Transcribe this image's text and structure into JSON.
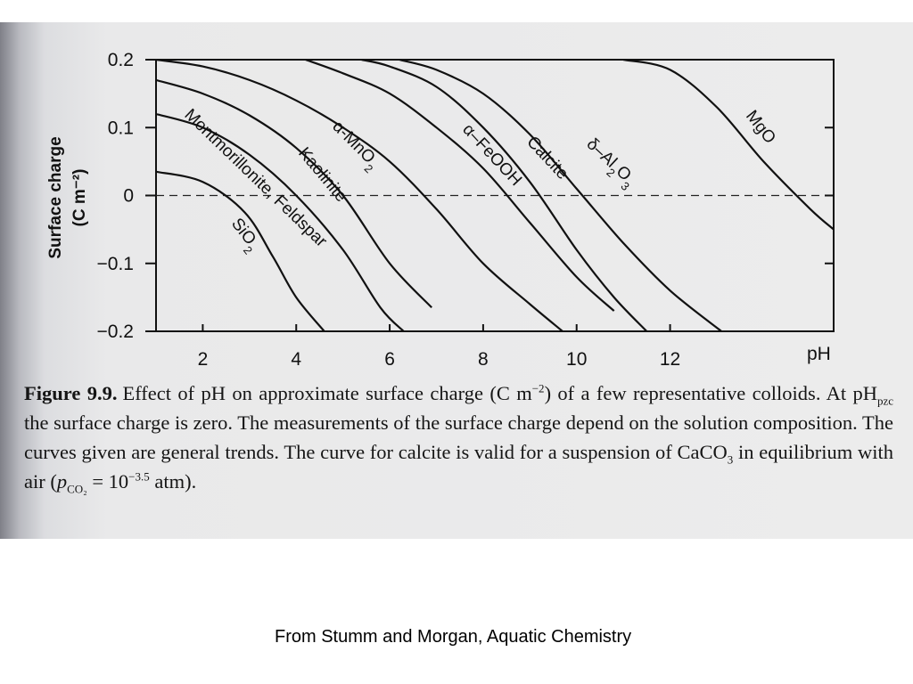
{
  "chart_data": {
    "type": "line",
    "title": "",
    "xlabel": "pH",
    "ylabel_line1": "Surface charge",
    "ylabel_line2": "(C m⁻²)",
    "xlim": [
      1,
      15.5
    ],
    "ylim": [
      -0.2,
      0.2
    ],
    "x_ticks": [
      2,
      4,
      6,
      8,
      10,
      12
    ],
    "x_tick_labels": [
      "2",
      "4",
      "6",
      "8",
      "10",
      "12"
    ],
    "y_ticks": [
      0.2,
      0.1,
      0,
      -0.1,
      -0.2
    ],
    "y_tick_labels": [
      "0.2",
      "0.1",
      "0",
      "−0.1",
      "−0.2"
    ],
    "zero_line": "dashed",
    "series": [
      {
        "name": "SiO2",
        "label": "SiO",
        "sub": "2",
        "x": [
          1.0,
          2.0,
          2.9,
          3.5,
          4.0,
          4.6
        ],
        "y": [
          0.035,
          0.02,
          -0.025,
          -0.09,
          -0.15,
          -0.2
        ]
      },
      {
        "name": "Montmorillonite, Feldspar",
        "label": "Montmorillonite, Feldspar",
        "x": [
          1.0,
          2.0,
          3.0,
          4.0,
          5.0,
          5.8,
          6.3
        ],
        "y": [
          0.12,
          0.1,
          0.06,
          0.0,
          -0.08,
          -0.165,
          -0.2
        ]
      },
      {
        "name": "Kaolinite",
        "label": "Kaolinite",
        "x": [
          1.0,
          2.0,
          3.0,
          4.0,
          5.0,
          6.0,
          6.9
        ],
        "y": [
          0.17,
          0.15,
          0.118,
          0.07,
          0.0,
          -0.1,
          -0.165
        ]
      },
      {
        "name": "α-MnO2",
        "label": "α-MnO",
        "sub": "2",
        "x": [
          1.0,
          2.0,
          3.0,
          4.0,
          5.0,
          6.0,
          7.0,
          8.0,
          9.0,
          9.7
        ],
        "y": [
          0.2,
          0.19,
          0.17,
          0.14,
          0.1,
          0.05,
          -0.02,
          -0.1,
          -0.16,
          -0.2
        ]
      },
      {
        "name": "α–FeOOH",
        "label": "α–FeOOH",
        "x": [
          4.2,
          5.0,
          6.0,
          7.0,
          8.0,
          9.0,
          10.0,
          10.8
        ],
        "y": [
          0.2,
          0.18,
          0.15,
          0.1,
          0.04,
          -0.04,
          -0.12,
          -0.17
        ]
      },
      {
        "name": "Calcite",
        "label": "Calcite",
        "x": [
          5.4,
          6.0,
          7.0,
          8.0,
          9.0,
          10.0,
          10.8,
          11.5
        ],
        "y": [
          0.2,
          0.19,
          0.16,
          0.1,
          0.02,
          -0.08,
          -0.15,
          -0.2
        ]
      },
      {
        "name": "δ–Al2O3",
        "label": "δ–Al",
        "sub": "2",
        "label2": "O",
        "sub2": "3",
        "x": [
          6.2,
          7.0,
          8.0,
          9.0,
          10.0,
          11.0,
          12.0,
          13.1
        ],
        "y": [
          0.2,
          0.185,
          0.15,
          0.09,
          0.01,
          -0.07,
          -0.14,
          -0.2
        ]
      },
      {
        "name": "MgO",
        "label": "MgO",
        "x": [
          11.0,
          12.0,
          13.0,
          14.0,
          15.0,
          15.5
        ],
        "y": [
          0.2,
          0.185,
          0.13,
          0.05,
          -0.02,
          -0.05
        ]
      }
    ]
  },
  "caption": {
    "figure_label": "Figure 9.9.",
    "text_1": "Effect of pH on approximate surface charge (C m",
    "sup_1": "−2",
    "text_2": ") of a few representative colloids. At pH",
    "sub_1": "pzc",
    "text_3": " the surface charge is zero. The measurements of the surface charge depend on the solution composition. The curves given are general trends. The curve for calcite is valid for a suspension of CaCO",
    "sub_2": "3",
    "text_4": " in equilibrium with air (",
    "p_symbol": "p",
    "sub_3": "CO₂",
    "text_5": " = 10",
    "sup_2": "−3.5",
    "text_6": " atm)."
  },
  "source": "From Stumm and Morgan, Aquatic Chemistry"
}
